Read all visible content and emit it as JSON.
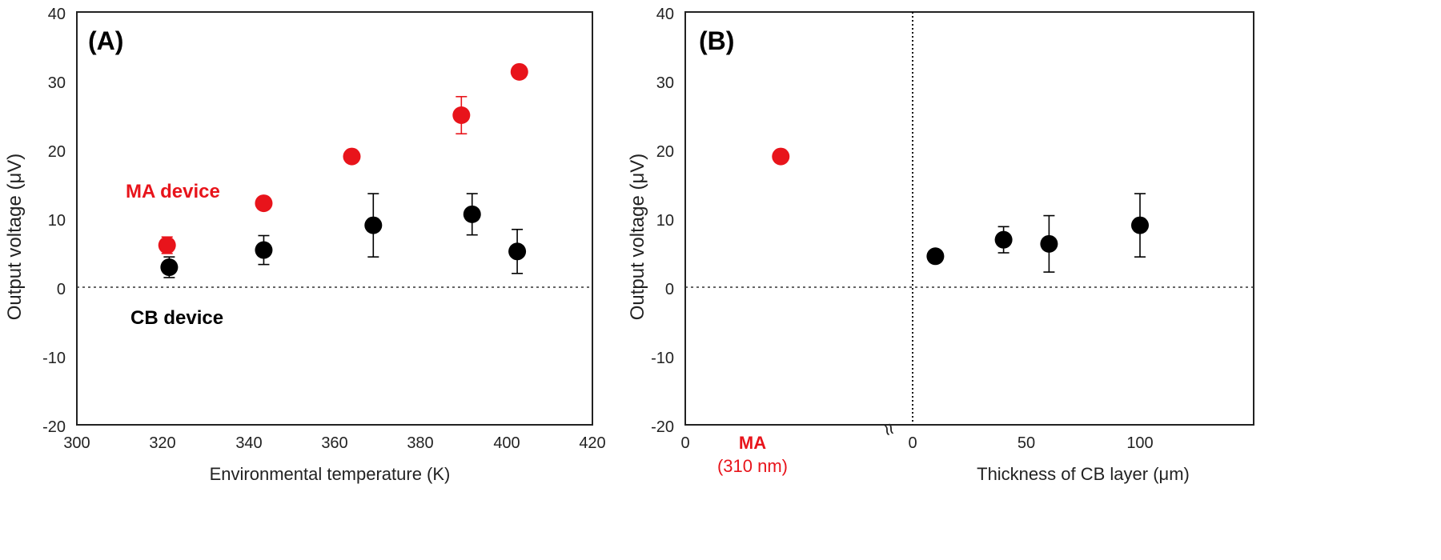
{
  "colors": {
    "red": "#e8141b",
    "black": "#000000",
    "axis": "#222222"
  },
  "chart_data": [
    {
      "type": "scatter",
      "panel_label": "(A)",
      "xlabel": "Environmental temperature (K)",
      "ylabel": "Output voltage (μV)",
      "xlim": [
        300,
        420
      ],
      "ylim": [
        -20,
        40
      ],
      "x_ticks": [
        "300",
        "320",
        "340",
        "360",
        "380",
        "400",
        "420"
      ],
      "y_ticks": [
        "-20",
        "-10",
        "0",
        "10",
        "20",
        "30",
        "40"
      ],
      "reference_line": {
        "y": 0,
        "style": "dotted"
      },
      "annotations": [
        {
          "text": "MA device",
          "color": "red"
        },
        {
          "text": "CB device",
          "color": "black"
        }
      ],
      "series": [
        {
          "name": "MA device",
          "color": "red",
          "points": [
            {
              "x": 321,
              "y": 6.1,
              "err": 1.2
            },
            {
              "x": 343.5,
              "y": 12.2,
              "err": 0
            },
            {
              "x": 364,
              "y": 19.0,
              "err": 0
            },
            {
              "x": 389.5,
              "y": 25.0,
              "err": 2.7
            },
            {
              "x": 403,
              "y": 31.3,
              "err": 0
            }
          ]
        },
        {
          "name": "CB device",
          "color": "black",
          "points": [
            {
              "x": 321.5,
              "y": 2.9,
              "err": 1.5
            },
            {
              "x": 343.5,
              "y": 5.4,
              "err": 2.1
            },
            {
              "x": 369,
              "y": 9.0,
              "err": 4.6
            },
            {
              "x": 392,
              "y": 10.6,
              "err": 3.0
            },
            {
              "x": 402.5,
              "y": 5.2,
              "err": 3.2
            }
          ]
        }
      ]
    },
    {
      "type": "scatter",
      "panel_label": "(B)",
      "xlabel": "Thickness of CB layer (μm)",
      "ylabel": "Output voltage (μV)",
      "xlim": [
        -100,
        150
      ],
      "ylim": [
        -20,
        40
      ],
      "x_ticks": [
        "0",
        "0",
        "50",
        "100"
      ],
      "y_ticks": [
        "-20",
        "-10",
        "0",
        "10",
        "20",
        "30",
        "40"
      ],
      "axis_break_mark": "≈",
      "reference_line": {
        "y": 0,
        "style": "dotted"
      },
      "category_label": {
        "name": "MA",
        "detail": "(310 nm)",
        "color": "red"
      },
      "series": [
        {
          "name": "MA (310 nm)",
          "color": "red",
          "points": [
            {
              "x": -58,
              "y": 19.0,
              "err": 0
            }
          ]
        },
        {
          "name": "CB layer",
          "color": "black",
          "points": [
            {
              "x": 10,
              "y": 4.5,
              "err": 0
            },
            {
              "x": 40,
              "y": 6.9,
              "err": 1.9
            },
            {
              "x": 60,
              "y": 6.3,
              "err": 4.1
            },
            {
              "x": 100,
              "y": 9.0,
              "err": 4.6
            }
          ]
        }
      ]
    }
  ]
}
